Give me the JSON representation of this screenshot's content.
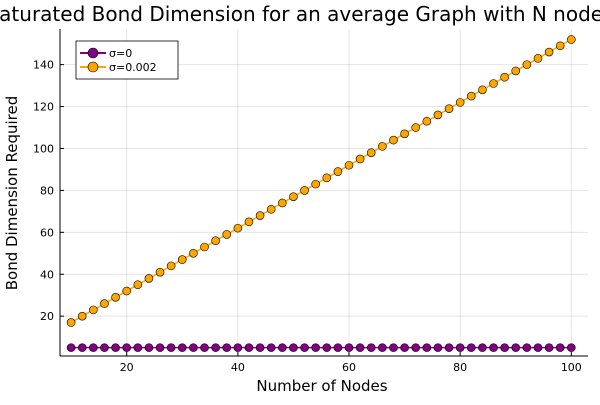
{
  "chart_data": {
    "type": "scatter",
    "title": "Saturated Bond Dimension for an average Graph with N nodes",
    "xlabel": "Number of Nodes",
    "ylabel": "Bond Dimension Required",
    "xlim": [
      8,
      103
    ],
    "ylim": [
      1,
      157
    ],
    "xticks": [
      20,
      40,
      60,
      80,
      100
    ],
    "yticks": [
      20,
      40,
      60,
      80,
      100,
      120,
      140
    ],
    "grid": true,
    "legend_position": "top-left",
    "x": [
      10,
      12,
      14,
      16,
      18,
      20,
      22,
      24,
      26,
      28,
      30,
      32,
      34,
      36,
      38,
      40,
      42,
      44,
      46,
      48,
      50,
      52,
      54,
      56,
      58,
      60,
      62,
      64,
      66,
      68,
      70,
      72,
      74,
      76,
      78,
      80,
      82,
      84,
      86,
      88,
      90,
      92,
      94,
      96,
      98,
      100
    ],
    "series": [
      {
        "name": "σ=0",
        "color": "#800080",
        "values": [
          5,
          5,
          5,
          5,
          5,
          5,
          5,
          5,
          5,
          5,
          5,
          5,
          5,
          5,
          5,
          5,
          5,
          5,
          5,
          5,
          5,
          5,
          5,
          5,
          5,
          5,
          5,
          5,
          5,
          5,
          5,
          5,
          5,
          5,
          5,
          5,
          5,
          5,
          5,
          5,
          5,
          5,
          5,
          5,
          5,
          5
        ]
      },
      {
        "name": "σ=0.002",
        "color": "#FFA500",
        "values": [
          17,
          20,
          23,
          26,
          29,
          32,
          35,
          38,
          41,
          44,
          47,
          50,
          53,
          56,
          59,
          62,
          65,
          68,
          71,
          74,
          77,
          80,
          83,
          86,
          89,
          92,
          95,
          98,
          101,
          104,
          107,
          110,
          113,
          116,
          119,
          122,
          125,
          128,
          131,
          134,
          137,
          140,
          143,
          146,
          149,
          152
        ]
      }
    ]
  }
}
